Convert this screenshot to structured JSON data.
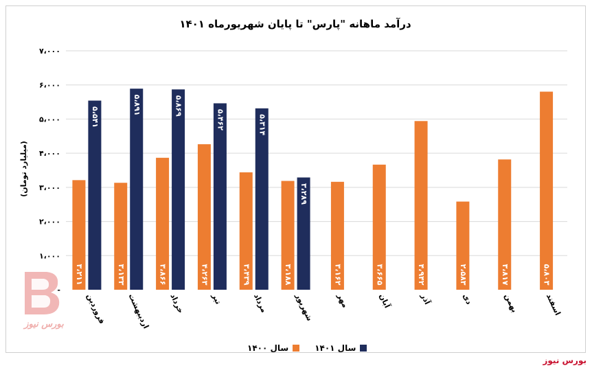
{
  "brand": "بورس نیوز",
  "watermark_text": "بورس نیوز",
  "colors": {
    "series1400": "#ed7d31",
    "series1401": "#1f2d5c",
    "grid": "#d9d9d9",
    "watermark": "#d8322d"
  },
  "chart_data": {
    "type": "bar",
    "title": "درآمد ماهانه \"پارس\" تا پایان شهریورماه ۱۴۰۱",
    "ylabel": "(میلیارد تومان)",
    "xlabel": "",
    "ylim": [
      0,
      7000
    ],
    "yticks": [
      0,
      1000,
      2000,
      3000,
      4000,
      5000,
      6000,
      7000
    ],
    "ytick_labels": [
      "-",
      "۱،۰۰۰",
      "۲،۰۰۰",
      "۳،۰۰۰",
      "۴،۰۰۰",
      "۵،۰۰۰",
      "۶،۰۰۰",
      "۷،۰۰۰"
    ],
    "grid": true,
    "legend_position": "bottom",
    "categories": [
      "فروردین",
      "اردیبهشت",
      "خرداد",
      "تیر",
      "مرداد",
      "شهریور",
      "مهر",
      "آبان",
      "آذر",
      "دی",
      "بهمن",
      "اسفند"
    ],
    "series": [
      {
        "name": "سال ۱۴۰۰",
        "values": [
          3211,
          3133,
          3866,
          4263,
          3439,
          3188,
          3162,
          3665,
          4942,
          2583,
          3817,
          5803
        ],
        "labels": [
          "۳،۲۱۱",
          "۳،۱۳۳",
          "۳،۸۶۶",
          "۴،۲۶۳",
          "۳،۴۳۹",
          "۳،۱۸۸",
          "۳،۱۶۲",
          "۳،۶۶۵",
          "۴،۹۴۲",
          "۲،۵۸۳",
          "۳،۸۱۷",
          "۵،۸۰۳"
        ]
      },
      {
        "name": "سال ۱۴۰۱",
        "values": [
          5541,
          5891,
          5869,
          5462,
          5314,
          3289,
          null,
          null,
          null,
          null,
          null,
          null
        ],
        "labels": [
          "۵،۵۴۱",
          "۵،۸۹۱",
          "۵،۸۶۹",
          "۵،۴۶۲",
          "۵،۳۱۴",
          "۳،۲۸۹",
          "",
          "",
          "",
          "",
          "",
          ""
        ]
      }
    ]
  }
}
